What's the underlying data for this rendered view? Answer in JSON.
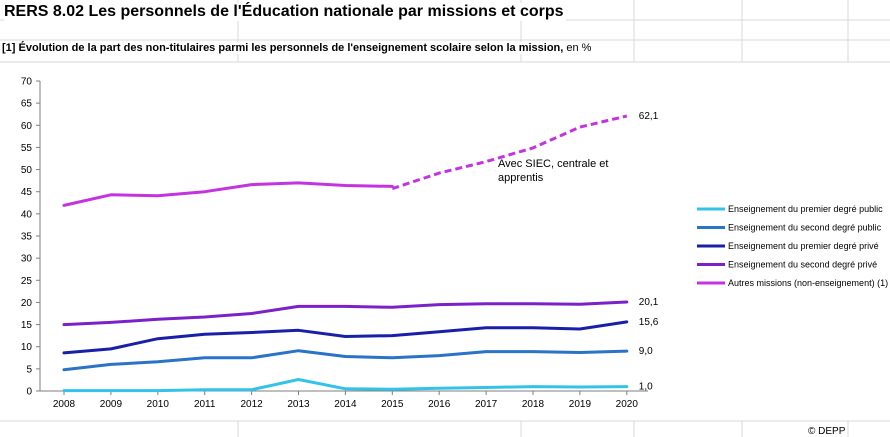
{
  "title": "RERS 8.02 Les personnels de l'Éducation nationale par missions et corps",
  "subtitle": {
    "main": "[1] Évolution de la part des non-titulaires parmi les personnels de l'enseignement scolaire selon la mission,",
    "unit": " en %"
  },
  "source": "© DEPP",
  "chart_data": {
    "type": "line",
    "x": [
      2008,
      2009,
      2010,
      2011,
      2012,
      2013,
      2014,
      2015,
      2016,
      2017,
      2018,
      2019,
      2020
    ],
    "ylim": [
      0,
      70
    ],
    "yticks": [
      0,
      5,
      10,
      15,
      20,
      25,
      30,
      35,
      40,
      45,
      50,
      55,
      60,
      65,
      70
    ],
    "grid": false,
    "legend_position": "right",
    "series": [
      {
        "name": "Enseignement du premier degré public",
        "color": "#33c3e8",
        "values": [
          0.1,
          0.1,
          0.1,
          0.3,
          0.3,
          2.6,
          0.5,
          0.4,
          0.6,
          0.8,
          1.0,
          0.9,
          1.0
        ],
        "end_label": "1,0"
      },
      {
        "name": "Enseignement du second degré public",
        "color": "#2a73c7",
        "values": [
          4.8,
          6.0,
          6.6,
          7.5,
          7.5,
          9.1,
          7.8,
          7.5,
          8.0,
          8.9,
          8.9,
          8.7,
          9.0
        ],
        "end_label": "9,0"
      },
      {
        "name": "Enseignement du premier degré privé",
        "color": "#1a1fa8",
        "values": [
          8.6,
          9.5,
          11.8,
          12.8,
          13.2,
          13.7,
          12.3,
          12.5,
          13.4,
          14.3,
          14.3,
          14.0,
          15.6
        ],
        "end_label": "15,6"
      },
      {
        "name": "Enseignement du second degré privé",
        "color": "#7a22c8",
        "values": [
          15.0,
          15.5,
          16.2,
          16.7,
          17.5,
          19.1,
          19.1,
          18.9,
          19.5,
          19.7,
          19.7,
          19.6,
          20.1
        ],
        "end_label": "20,1"
      },
      {
        "name": "Autres missions (non-enseignement) (1)",
        "color": "#c433e0",
        "values": [
          41.9,
          44.3,
          44.1,
          45.0,
          46.6,
          47.0,
          46.4,
          46.2,
          null,
          null,
          null,
          null,
          null
        ],
        "continuation": {
          "x": [
            2015,
            2016,
            2017,
            2018,
            2019,
            2020
          ],
          "values": [
            45.7,
            49.2,
            51.8,
            54.9,
            59.6,
            62.1
          ],
          "annotation": "Avec SIEC, centrale et apprentis"
        },
        "end_label": "62,1"
      }
    ]
  }
}
